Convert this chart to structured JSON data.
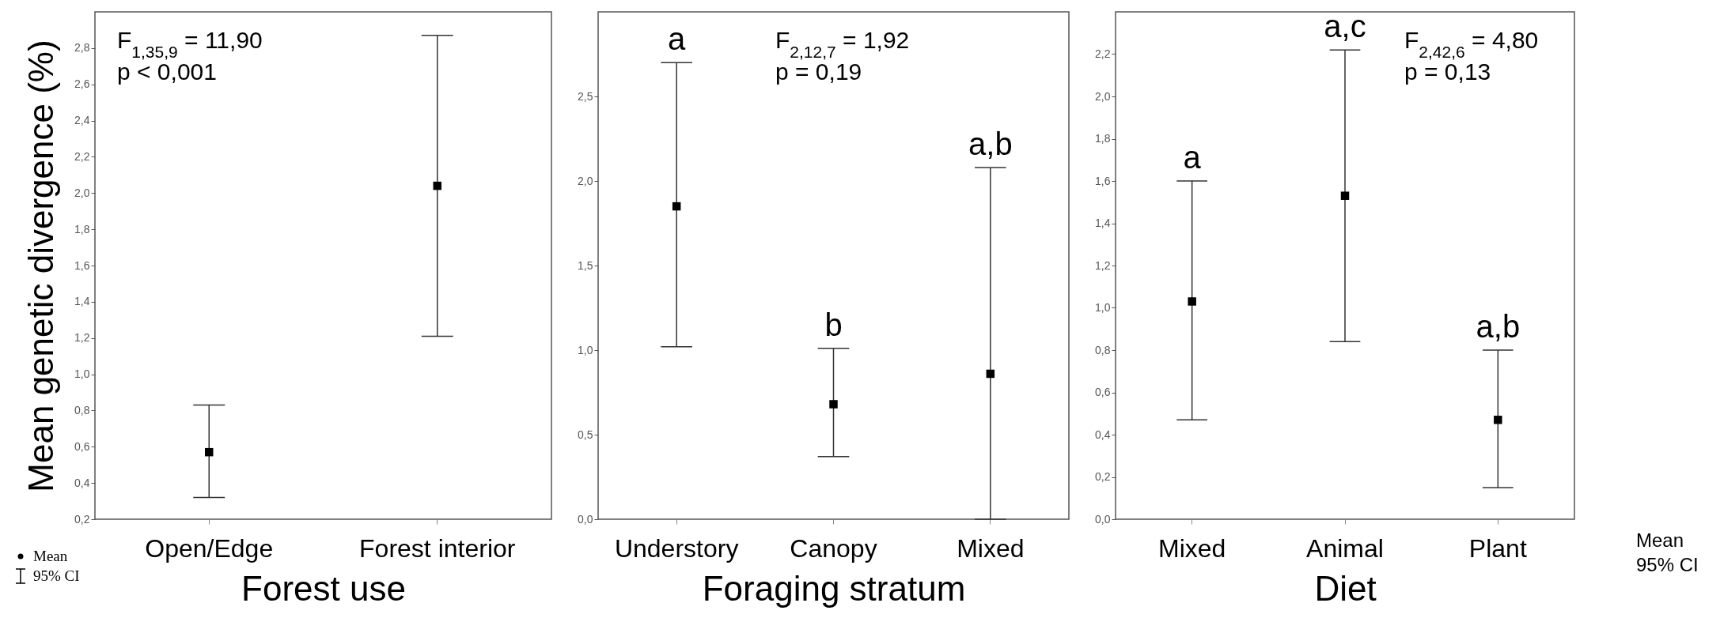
{
  "chart_data": [
    {
      "type": "scatter",
      "ylabel": "Mean genetic divergence (%)",
      "xlabel": "Forest use",
      "categories": [
        "Open/Edge",
        "Forest interior"
      ],
      "color": "#000000",
      "values": [
        0.57,
        2.04
      ],
      "errors": [
        [
          0.32,
          0.83
        ],
        [
          1.21,
          2.87
        ]
      ],
      "marker": "square",
      "grid": false,
      "ylim": [
        0.2,
        3.0
      ],
      "yticks": [
        {
          "value": 0.2,
          "label": "0,2"
        },
        {
          "value": 0.4,
          "label": "0,4"
        },
        {
          "value": 0.6,
          "label": "0,6"
        },
        {
          "value": 0.8,
          "label": "0,8"
        },
        {
          "value": 1.0,
          "label": "1,0"
        },
        {
          "value": 1.2,
          "label": "1,2"
        },
        {
          "value": 1.4,
          "label": "1,4"
        },
        {
          "value": 1.6,
          "label": "1,6"
        },
        {
          "value": 1.8,
          "label": "1,8"
        },
        {
          "value": 2.0,
          "label": "2,0"
        },
        {
          "value": 2.2,
          "label": "2,2"
        },
        {
          "value": 2.4,
          "label": "2,4"
        },
        {
          "value": 2.6,
          "label": "2,6"
        },
        {
          "value": 2.8,
          "label": "2,8"
        }
      ],
      "annotations": [
        "F$_{1,35,9}$ = 11,90",
        "p < 0,001",
        "Mean",
        "95% CI"
      ]
    },
    {
      "type": "scatter",
      "xlabel": "Foraging stratum",
      "categories": [
        "Understory",
        "Canopy",
        "Mixed"
      ],
      "color": "#000000",
      "values": [
        1.85,
        0.68,
        0.86
      ],
      "errors": [
        [
          1.02,
          2.7
        ],
        [
          0.37,
          1.01
        ],
        [
          0.0,
          2.08
        ]
      ],
      "marker": "square",
      "grid": false,
      "ylim": [
        0.0,
        3.0
      ],
      "yticks": [
        {
          "value": 0.0,
          "label": "0,0"
        },
        {
          "value": 0.5,
          "label": "0,5"
        },
        {
          "value": 1.0,
          "label": "1,0"
        },
        {
          "value": 1.5,
          "label": "1,5"
        },
        {
          "value": 2.0,
          "label": "2,0"
        },
        {
          "value": 2.5,
          "label": "2,5"
        }
      ],
      "annotations": [
        "F$_{2,12,7}$ = 1,92",
        "p = 0,19",
        {
          "text": "a",
          "x": "Understory",
          "y": 2.7
        },
        {
          "text": "b",
          "x": "Canopy",
          "y": 1.01
        },
        {
          "text": "a,b",
          "x": "Mixed",
          "y": 2.08
        }
      ]
    },
    {
      "type": "scatter",
      "xlabel": "Diet",
      "categories": [
        "Mixed",
        "Animal",
        "Plant"
      ],
      "color": "#000000",
      "values": [
        1.03,
        1.53,
        0.47
      ],
      "errors": [
        [
          0.47,
          1.6
        ],
        [
          0.84,
          2.22
        ],
        [
          0.15,
          0.8
        ]
      ],
      "marker": "square",
      "grid": false,
      "ylim": [
        0.0,
        2.4
      ],
      "yticks": [
        {
          "value": 0.0,
          "label": "0,0"
        },
        {
          "value": 0.2,
          "label": "0,2"
        },
        {
          "value": 0.4,
          "label": "0,4"
        },
        {
          "value": 0.6,
          "label": "0,6"
        },
        {
          "value": 0.8,
          "label": "0,8"
        },
        {
          "value": 1.0,
          "label": "1,0"
        },
        {
          "value": 1.2,
          "label": "1,2"
        },
        {
          "value": 1.4,
          "label": "1,4"
        },
        {
          "value": 1.6,
          "label": "1,6"
        },
        {
          "value": 1.8,
          "label": "1,8"
        },
        {
          "value": 2.0,
          "label": "2,0"
        },
        {
          "value": 2.2,
          "label": "2,2"
        }
      ],
      "annotations": [
        "F$_{2,42,6}$ = 4,80",
        "p = 0,13",
        {
          "text": "a",
          "x": "Mixed",
          "y": 1.6
        },
        {
          "text": "a,c",
          "x": "Animal",
          "y": 2.22
        },
        {
          "text": "a,b",
          "x": "Plant",
          "y": 0.8
        },
        "Mean",
        "95% CI"
      ]
    }
  ]
}
